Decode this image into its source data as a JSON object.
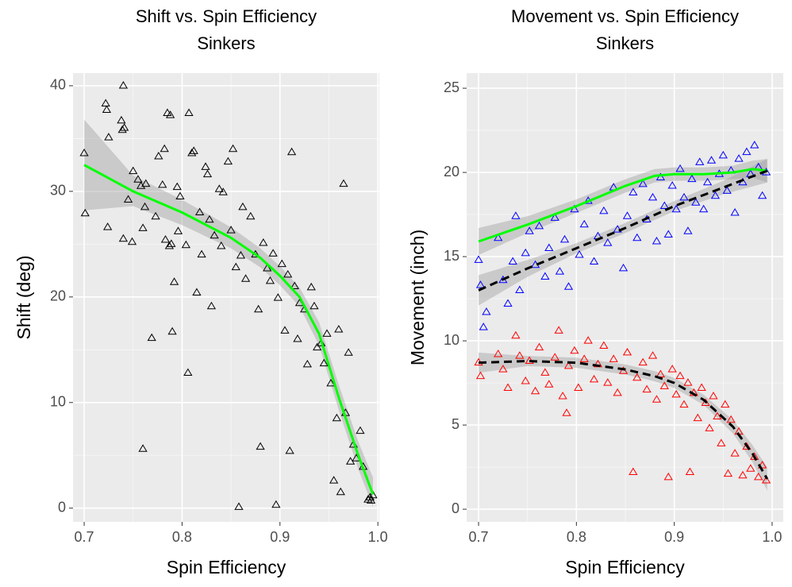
{
  "chart_data": [
    {
      "type": "scatter",
      "title": "Shift vs. Spin Efficiency",
      "subtitle": "Sinkers",
      "xlabel": "Spin Efficiency",
      "ylabel": "Shift (deg)",
      "xlim": [
        0.6886,
        1.0015
      ],
      "ylim": [
        -1.3,
        41.2
      ],
      "xticks": [
        0.7,
        0.8,
        0.9,
        {
          "value": 1,
          "label": "1.0"
        }
      ],
      "yticks": [
        0,
        10,
        20,
        30,
        40
      ],
      "grid": true,
      "series": [
        {
          "color": "#000000",
          "marker": "triangle",
          "x": [
            0.7,
            0.701,
            0.722,
            0.723,
            0.725,
            0.724,
            0.738,
            0.74,
            0.739,
            0.741,
            0.74,
            0.745,
            0.749,
            0.75,
            0.755,
            0.758,
            0.76,
            0.762,
            0.76,
            0.763,
            0.769,
            0.773,
            0.776,
            0.78,
            0.782,
            0.783,
            0.785,
            0.787,
            0.788,
            0.79,
            0.789,
            0.792,
            0.795,
            0.796,
            0.798,
            0.804,
            0.806,
            0.807,
            0.81,
            0.812,
            0.815,
            0.818,
            0.82,
            0.824,
            0.826,
            0.828,
            0.83,
            0.833,
            0.838,
            0.84,
            0.842,
            0.847,
            0.85,
            0.852,
            0.855,
            0.858,
            0.86,
            0.862,
            0.865,
            0.87,
            0.875,
            0.878,
            0.88,
            0.883,
            0.887,
            0.89,
            0.893,
            0.896,
            0.898,
            0.902,
            0.905,
            0.908,
            0.91,
            0.912,
            0.915,
            0.918,
            0.92,
            0.925,
            0.928,
            0.932,
            0.935,
            0.938,
            0.942,
            0.945,
            0.948,
            0.952,
            0.955,
            0.958,
            0.96,
            0.962,
            0.965,
            0.967,
            0.97,
            0.972,
            0.975,
            0.978,
            0.982,
            0.985,
            0.99,
            0.992,
            0.995,
            0.993
          ],
          "values": [
            33.6,
            27.9,
            38.3,
            37.7,
            35.1,
            26.6,
            36.7,
            40.0,
            35.8,
            36.0,
            25.5,
            29.2,
            25.2,
            31.9,
            31.1,
            30.5,
            26.5,
            28.5,
            5.6,
            30.7,
            16.1,
            27.6,
            33.3,
            30.6,
            34.0,
            25.4,
            37.4,
            24.8,
            37.2,
            16.7,
            25.0,
            21.4,
            30.4,
            26.2,
            29.5,
            24.9,
            12.8,
            37.4,
            33.6,
            33.8,
            20.4,
            28.0,
            24.0,
            32.3,
            31.6,
            27.3,
            19.1,
            25.8,
            30.2,
            24.8,
            29.9,
            32.8,
            26.3,
            34.0,
            22.8,
            0.1,
            23.9,
            28.5,
            21.7,
            27.6,
            24.0,
            18.8,
            5.8,
            25.1,
            22.7,
            21.5,
            24.1,
            0.3,
            19.9,
            23.1,
            16.8,
            22.1,
            5.4,
            33.7,
            21.0,
            16.0,
            19.4,
            18.8,
            13.6,
            20.9,
            19.1,
            15.2,
            15.6,
            13.7,
            16.5,
            11.8,
            2.6,
            8.5,
            16.9,
            1.5,
            30.7,
            9.0,
            14.7,
            4.4,
            6.0,
            4.7,
            7.3,
            3.9,
            0.8,
            1.0,
            1.2,
            0.7
          ]
        },
        {
          "color": "#00ff00",
          "line": "solid",
          "band_color": "#999999",
          "x": [
            0.7,
            0.75,
            0.8,
            0.85,
            0.88,
            0.9,
            0.92,
            0.94,
            0.96,
            0.98,
            0.995
          ],
          "values": [
            32.5,
            30.0,
            28.0,
            25.6,
            23.7,
            22.0,
            20.0,
            16.5,
            10.5,
            5.0,
            1.3
          ],
          "lower": [
            28.2,
            28.6,
            26.8,
            24.6,
            22.8,
            21.1,
            19.1,
            15.4,
            9.3,
            3.7,
            0.1
          ],
          "upper": [
            36.8,
            31.5,
            29.2,
            26.6,
            24.6,
            22.9,
            20.9,
            17.6,
            11.7,
            6.3,
            2.9
          ]
        }
      ]
    },
    {
      "type": "scatter",
      "title": "Movement vs. Spin Efficiency",
      "subtitle": "Sinkers",
      "xlabel": "Spin Efficiency",
      "ylabel": "Movement (inch)",
      "xlim": [
        0.6878,
        1.0114
      ],
      "ylim": [
        -0.75,
        25.9
      ],
      "xticks": [
        0.7,
        0.8,
        0.9,
        {
          "value": 1,
          "label": "1.0"
        }
      ],
      "yticks": [
        0,
        5,
        10,
        15,
        20,
        25
      ],
      "grid": true,
      "series": [
        {
          "color": "#0000ff",
          "marker": "triangle",
          "x": [
            0.7,
            0.702,
            0.705,
            0.708,
            0.72,
            0.725,
            0.73,
            0.735,
            0.738,
            0.742,
            0.748,
            0.752,
            0.758,
            0.762,
            0.768,
            0.772,
            0.778,
            0.783,
            0.788,
            0.792,
            0.798,
            0.803,
            0.808,
            0.812,
            0.818,
            0.822,
            0.828,
            0.832,
            0.838,
            0.842,
            0.848,
            0.852,
            0.858,
            0.862,
            0.868,
            0.872,
            0.878,
            0.882,
            0.886,
            0.89,
            0.894,
            0.898,
            0.902,
            0.906,
            0.91,
            0.914,
            0.918,
            0.922,
            0.926,
            0.93,
            0.934,
            0.938,
            0.942,
            0.946,
            0.95,
            0.954,
            0.958,
            0.962,
            0.966,
            0.97,
            0.974,
            0.978,
            0.982,
            0.986,
            0.99,
            0.994
          ],
          "values": [
            14.8,
            13.3,
            10.8,
            11.7,
            16.1,
            13.6,
            12.2,
            14.7,
            17.4,
            13.0,
            15.2,
            16.5,
            14.5,
            16.8,
            13.8,
            15.5,
            17.3,
            14.1,
            16.0,
            13.2,
            17.8,
            15.1,
            16.9,
            18.3,
            14.7,
            16.2,
            17.7,
            15.8,
            19.1,
            16.6,
            14.3,
            17.4,
            18.8,
            16.1,
            19.3,
            17.2,
            18.5,
            15.9,
            19.7,
            18.0,
            16.3,
            19.2,
            17.8,
            20.2,
            18.5,
            16.5,
            19.6,
            18.2,
            20.6,
            17.8,
            19.4,
            20.7,
            18.6,
            19.9,
            21.0,
            18.9,
            20.1,
            17.6,
            20.8,
            19.4,
            21.2,
            19.9,
            21.6,
            20.3,
            18.6,
            20.0
          ]
        },
        {
          "color": "#ff0000",
          "marker": "triangle",
          "x": [
            0.7,
            0.702,
            0.72,
            0.725,
            0.73,
            0.738,
            0.742,
            0.748,
            0.752,
            0.758,
            0.762,
            0.768,
            0.772,
            0.778,
            0.782,
            0.786,
            0.79,
            0.792,
            0.798,
            0.802,
            0.808,
            0.812,
            0.818,
            0.822,
            0.828,
            0.832,
            0.838,
            0.842,
            0.848,
            0.852,
            0.858,
            0.862,
            0.868,
            0.872,
            0.878,
            0.882,
            0.886,
            0.89,
            0.894,
            0.898,
            0.902,
            0.906,
            0.91,
            0.914,
            0.916,
            0.92,
            0.924,
            0.928,
            0.932,
            0.936,
            0.94,
            0.944,
            0.948,
            0.952,
            0.955,
            0.958,
            0.962,
            0.966,
            0.97,
            0.974,
            0.978,
            0.982,
            0.986,
            0.99,
            0.994
          ],
          "values": [
            8.7,
            7.9,
            9.2,
            8.3,
            7.2,
            10.3,
            9.1,
            7.6,
            8.8,
            7.0,
            9.6,
            8.1,
            7.4,
            9.0,
            10.6,
            6.7,
            5.7,
            8.5,
            9.4,
            7.2,
            8.9,
            10.0,
            7.7,
            8.6,
            9.7,
            7.5,
            8.9,
            6.9,
            8.2,
            9.3,
            2.2,
            7.8,
            8.7,
            7.1,
            9.1,
            6.5,
            8.0,
            7.3,
            1.9,
            8.3,
            6.8,
            7.9,
            6.2,
            7.5,
            2.2,
            6.9,
            5.4,
            7.2,
            6.3,
            4.8,
            6.7,
            5.5,
            3.9,
            6.2,
            2.1,
            5.3,
            3.3,
            4.6,
            2.0,
            3.7,
            2.4,
            3.1,
            1.9,
            2.6,
            1.7
          ]
        },
        {
          "color": "#00ff00",
          "line": "solid",
          "band_color": "#999999",
          "x": [
            0.7,
            0.75,
            0.8,
            0.85,
            0.88,
            0.9,
            0.93,
            0.96,
            0.98,
            0.995
          ],
          "values": [
            15.9,
            16.9,
            18.0,
            19.2,
            19.8,
            19.9,
            19.9,
            20.0,
            20.2,
            20.1
          ],
          "lower": [
            15.1,
            16.4,
            17.6,
            18.8,
            19.4,
            19.5,
            19.5,
            19.6,
            19.7,
            19.4
          ],
          "upper": [
            16.7,
            17.4,
            18.4,
            19.6,
            20.2,
            20.3,
            20.3,
            20.4,
            20.7,
            20.8
          ]
        },
        {
          "color": "#000000",
          "line": "dashed",
          "band_color": "#999999",
          "x": [
            0.7,
            0.75,
            0.8,
            0.85,
            0.9,
            0.95,
            0.995
          ],
          "values": [
            13.0,
            14.3,
            15.5,
            16.7,
            18.0,
            19.1,
            20.1
          ],
          "lower": [
            12.1,
            13.8,
            15.2,
            16.4,
            17.7,
            18.7,
            19.4
          ],
          "upper": [
            13.9,
            14.8,
            15.8,
            17.0,
            18.3,
            19.5,
            20.8
          ]
        },
        {
          "color": "#000000",
          "line": "dashed",
          "band_color": "#999999",
          "x": [
            0.7,
            0.75,
            0.8,
            0.85,
            0.88,
            0.9,
            0.93,
            0.96,
            0.98,
            0.995
          ],
          "values": [
            8.7,
            8.8,
            8.7,
            8.3,
            7.9,
            7.5,
            6.5,
            4.9,
            3.3,
            1.8
          ],
          "lower": [
            8.1,
            8.5,
            8.4,
            8.0,
            7.6,
            7.2,
            6.2,
            4.5,
            2.8,
            1.1
          ],
          "upper": [
            9.3,
            9.1,
            9.0,
            8.6,
            8.2,
            7.8,
            6.8,
            5.3,
            3.8,
            2.5
          ]
        }
      ]
    }
  ]
}
